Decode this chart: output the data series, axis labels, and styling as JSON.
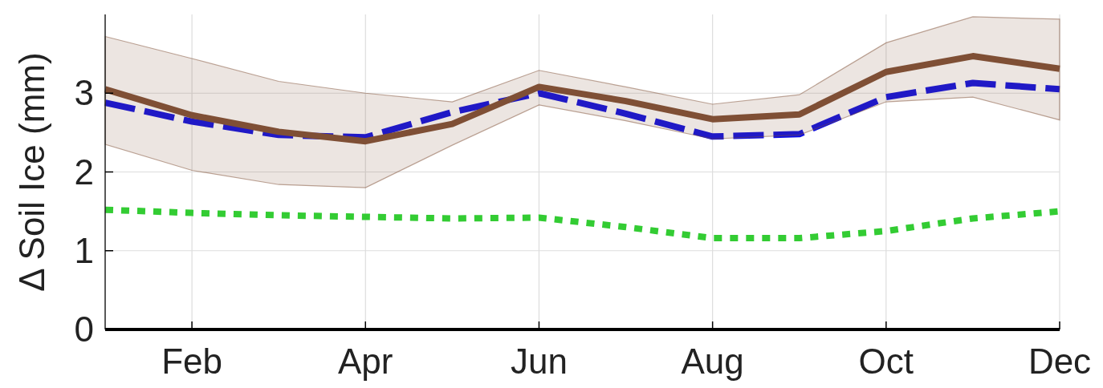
{
  "chart_data": {
    "type": "line",
    "ylabel": "Δ Soil Ice (mm)",
    "categories": [
      null,
      "Feb",
      null,
      "Apr",
      null,
      "Jun",
      null,
      "Aug",
      null,
      "Oct",
      null,
      "Dec"
    ],
    "ylim": [
      0,
      4
    ],
    "yticks": [
      0,
      1,
      2,
      3
    ],
    "grid": true,
    "marker": "none",
    "series": [
      {
        "color": "#7f4f35",
        "line_style": "solid",
        "values": [
          3.05,
          2.72,
          2.51,
          2.39,
          2.61,
          3.08,
          2.9,
          2.67,
          2.73,
          3.27,
          3.47,
          3.31
        ],
        "lower": [
          2.35,
          2.02,
          1.84,
          1.8,
          2.34,
          2.85,
          2.65,
          2.42,
          2.47,
          2.89,
          2.95,
          2.66
        ],
        "upper": [
          3.72,
          3.44,
          3.15,
          3.0,
          2.89,
          3.29,
          3.08,
          2.86,
          2.98,
          3.64,
          3.97,
          3.94
        ]
      },
      {
        "color": "#1010e0",
        "line_style": "dashed",
        "values": [
          2.88,
          2.64,
          2.47,
          2.44,
          2.76,
          3.0,
          2.74,
          2.45,
          2.48,
          2.95,
          3.13,
          3.05
        ]
      },
      {
        "color": "#33cc33",
        "line_style": "dotted",
        "values": [
          1.52,
          1.48,
          1.45,
          1.43,
          1.41,
          1.42,
          1.3,
          1.16,
          1.16,
          1.25,
          1.41,
          1.5
        ]
      }
    ]
  }
}
